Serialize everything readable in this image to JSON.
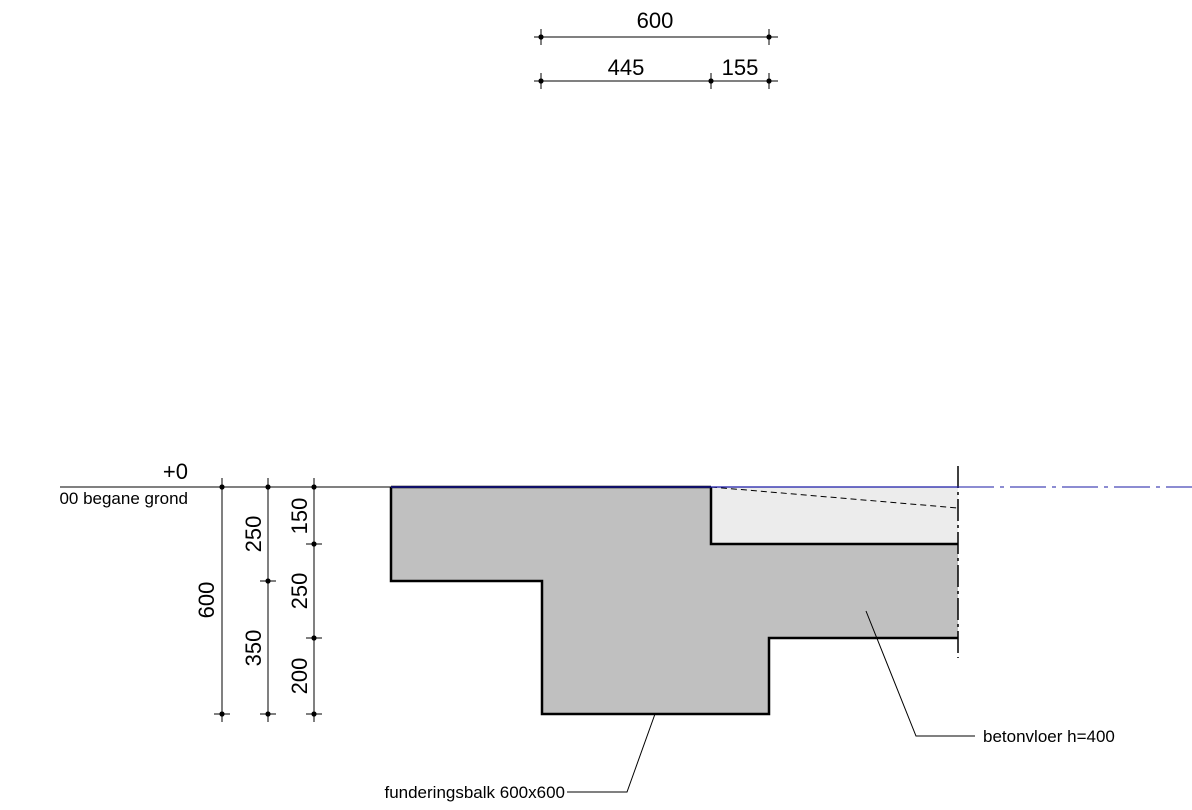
{
  "top_dimensions": {
    "total": "600",
    "left_part": "445",
    "right_part": "155"
  },
  "level": {
    "value": "+0",
    "name": "00 begane grond"
  },
  "vertical_dimensions": {
    "total": "600",
    "col2_upper": "250",
    "col2_lower": "350",
    "col3_top": "150",
    "col3_mid": "250",
    "col3_bottom": "200"
  },
  "labels": {
    "floor": "betonvloer h=400",
    "beam": "funderingsbalk 600x600"
  },
  "colors": {
    "section_fill": "#c0c0c0",
    "insulation_fill": "#ececec",
    "level_line": "#1a1aa6"
  }
}
